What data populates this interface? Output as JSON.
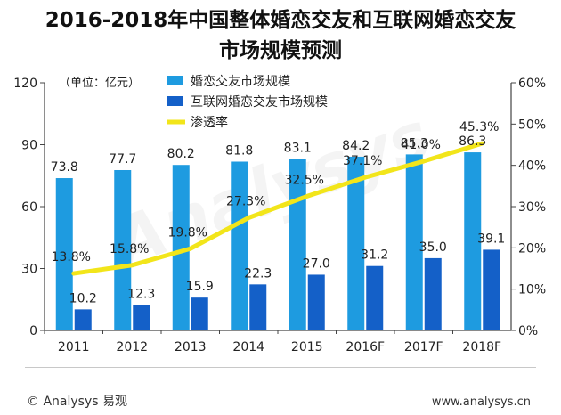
{
  "title_lines": [
    "2016-2018年中国整体婚恋交友和互联网婚恋交友",
    "市场规模预测"
  ],
  "unit_label": "（单位：亿元）",
  "copyright": "© Analysys 易观",
  "website": "www.analysys.cn",
  "watermark": "Analysys",
  "colors": {
    "market_total": "#1e9be0",
    "market_online": "#1460c8",
    "penetration": "#f2e51a"
  },
  "chart_data": {
    "type": "bar",
    "categories": [
      "2011",
      "2012",
      "2013",
      "2014",
      "2015",
      "2016F",
      "2017F",
      "2018F"
    ],
    "series": [
      {
        "name": "婚恋交友市场规模",
        "kind": "bar",
        "axis": "left",
        "values": [
          73.8,
          77.7,
          80.2,
          81.8,
          83.1,
          84.2,
          85.3,
          86.3
        ],
        "labels": [
          "73.8",
          "77.7",
          "80.2",
          "81.8",
          "83.1",
          "84.2",
          "85.3",
          "86.3"
        ]
      },
      {
        "name": "互联网婚恋交友市场规模",
        "kind": "bar",
        "axis": "left",
        "values": [
          10.2,
          12.3,
          15.9,
          22.3,
          27.0,
          31.2,
          35.0,
          39.1
        ],
        "labels": [
          "10.2",
          "12.3",
          "15.9",
          "22.3",
          "27.0",
          "31.2",
          "35.0",
          "39.1"
        ]
      },
      {
        "name": "渗透率",
        "kind": "line",
        "axis": "right",
        "values": [
          13.8,
          15.8,
          19.8,
          27.3,
          32.5,
          37.1,
          41.0,
          45.3
        ],
        "labels": [
          "13.8%",
          "15.8%",
          "19.8%",
          "27.3%",
          "32.5%",
          "37.1%",
          "41.0%",
          "45.3%"
        ]
      }
    ],
    "y_left": {
      "ylim": [
        0,
        120
      ],
      "ticks": [
        "0",
        "30",
        "60",
        "90",
        "120"
      ]
    },
    "y_right": {
      "ylim": [
        0,
        60
      ],
      "ticks": [
        "0%",
        "10%",
        "20%",
        "30%",
        "40%",
        "50%",
        "60%"
      ]
    },
    "grid": false,
    "legend": "top-left"
  }
}
